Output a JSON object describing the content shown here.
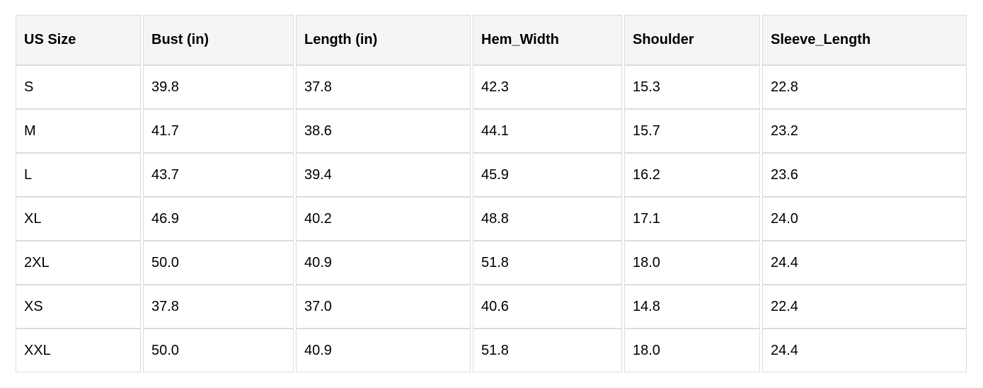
{
  "colors": {
    "header_background": "#f5f5f5",
    "cell_border": "#dcdcdc",
    "text": "#000000",
    "page_background": "#ffffff"
  },
  "chart_data": {
    "type": "table",
    "columns": [
      "US Size",
      "Bust (in)",
      "Length (in)",
      "Hem_Width",
      "Shoulder",
      "Sleeve_Length"
    ],
    "rows": [
      [
        "S",
        "39.8",
        "37.8",
        "42.3",
        "15.3",
        "22.8"
      ],
      [
        "M",
        "41.7",
        "38.6",
        "44.1",
        "15.7",
        "23.2"
      ],
      [
        "L",
        "43.7",
        "39.4",
        "45.9",
        "16.2",
        "23.6"
      ],
      [
        "XL",
        "46.9",
        "40.2",
        "48.8",
        "17.1",
        "24.0"
      ],
      [
        "2XL",
        "50.0",
        "40.9",
        "51.8",
        "18.0",
        "24.4"
      ],
      [
        "XS",
        "37.8",
        "37.0",
        "40.6",
        "14.8",
        "22.4"
      ],
      [
        "XXL",
        "50.0",
        "40.9",
        "51.8",
        "18.0",
        "24.4"
      ]
    ]
  }
}
